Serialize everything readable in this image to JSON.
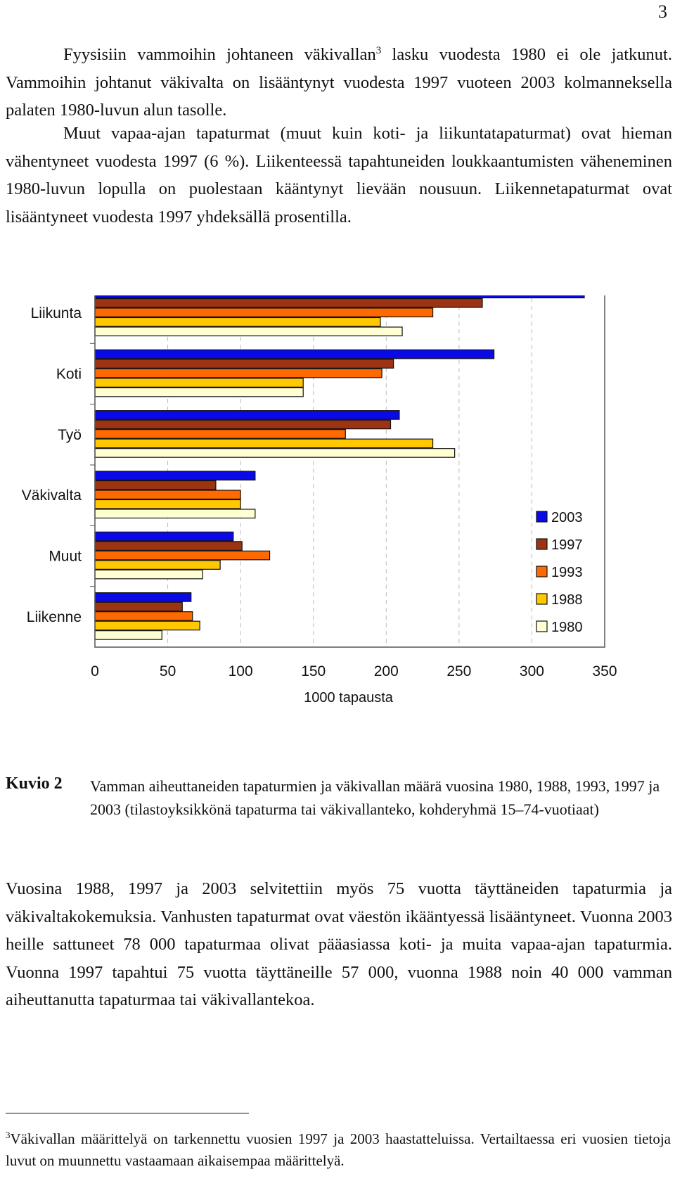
{
  "page_number": "3",
  "para1": {
    "text_a": "Fyysisiin vammoihin johtaneen väkivallan",
    "footnote_ref": "3",
    "text_b": " lasku vuodesta 1980 ei ole jatkunut. Vammoihin johtanut väkivalta on lisääntynyt vuodesta 1997 vuoteen 2003 kolmanneksella palaten 1980-luvun alun tasolle."
  },
  "para2": {
    "text": "Muut vapaa-ajan tapaturmat (muut kuin koti- ja liikuntatapaturmat) ovat hieman vähentyneet vuodesta 1997 (6 %). Liikenteessä tapahtuneiden loukkaantumisten väheneminen 1980-luvun lopulla on puolestaan kääntynyt lievään nousuun. Liikennetapaturmat ovat lisääntyneet vuodesta 1997 yhdeksällä prosentilla."
  },
  "chart_data": {
    "type": "bar",
    "orientation": "horizontal",
    "categories": [
      "Liikunta",
      "Koti",
      "Työ",
      "Väkivalta",
      "Muut",
      "Liikenne"
    ],
    "series": [
      {
        "name": "2003",
        "color": "#0a0ae6",
        "values": [
          336,
          274,
          209,
          110,
          95,
          66
        ]
      },
      {
        "name": "1997",
        "color": "#9c3312",
        "values": [
          266,
          205,
          203,
          83,
          101,
          60
        ]
      },
      {
        "name": "1993",
        "color": "#ff6a00",
        "values": [
          232,
          197,
          172,
          100,
          120,
          67
        ]
      },
      {
        "name": "1988",
        "color": "#ffc800",
        "values": [
          196,
          143,
          232,
          100,
          86,
          72
        ]
      },
      {
        "name": "1980",
        "color": "#ffffd2",
        "values": [
          211,
          143,
          247,
          110,
          74,
          46
        ]
      }
    ],
    "xlim": [
      0,
      350
    ],
    "xticks": [
      "0",
      "50",
      "100",
      "150",
      "200",
      "250",
      "300",
      "350"
    ],
    "xlabel": "1000 tapausta",
    "ylabel": "",
    "title": "",
    "grid": "vertical dashed",
    "legend_position": "bottom-right"
  },
  "caption": {
    "label": "Kuvio 2",
    "text": "Vamman aiheuttaneiden tapaturmien ja väkivallan määrä vuosina 1980, 1988, 1993, 1997 ja 2003 (tilastoyksikkönä tapaturma tai väkivallanteko, kohderyhmä 15–74-vuotiaat)"
  },
  "para3": {
    "text": "Vuosina 1988, 1997 ja 2003 selvitettiin myös 75 vuotta täyttäneiden tapaturmia ja väkivaltakokemuksia. Vanhusten tapaturmat ovat väestön ikääntyessä lisääntyneet. Vuonna 2003 heille sattuneet 78 000 tapaturmaa olivat pääasiassa koti- ja muita vapaa-ajan tapaturmia. Vuonna 1997 tapahtui 75 vuotta täyttäneille 57 000, vuonna 1988 noin 40 000 vamman aiheuttanutta tapaturmaa tai väkivallantekoa."
  },
  "footnote": {
    "number": "3",
    "text": "Väkivallan määrittelyä on tarkennettu vuosien 1997 ja 2003 haastatteluissa. Vertailtaessa eri vuosien tietoja luvut on muunnettu vastaamaan aikaisempaa määrittelyä."
  }
}
